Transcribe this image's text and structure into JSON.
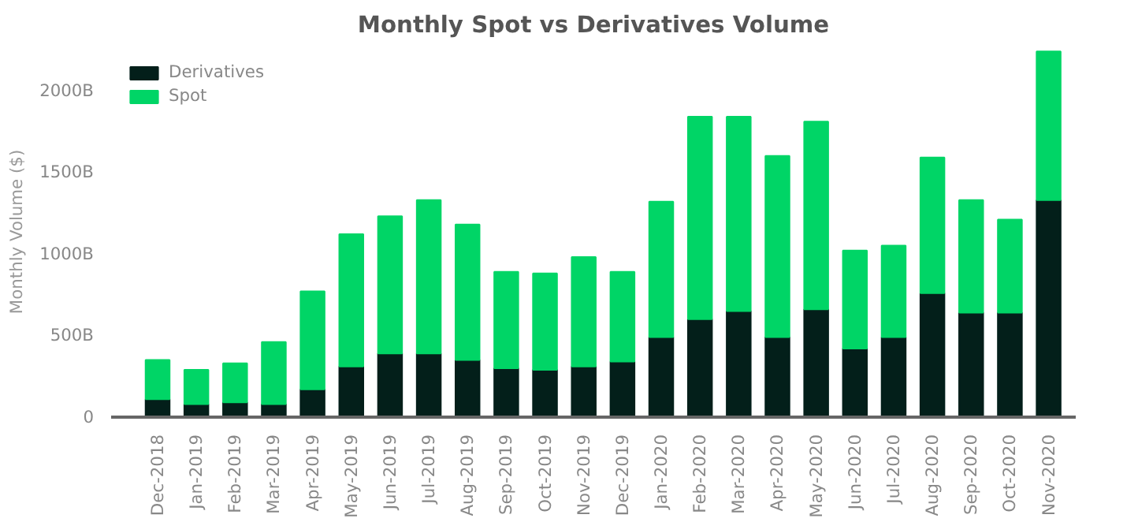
{
  "chart_data": {
    "type": "bar",
    "title": "Monthly Spot vs Derivatives Volume",
    "ylabel": "Monthly Volume ($)",
    "categories": [
      "Dec-2018",
      "Jan-2019",
      "Feb-2019",
      "Mar-2019",
      "Apr-2019",
      "May-2019",
      "Jun-2019",
      "Jul-2019",
      "Aug-2019",
      "Sep-2019",
      "Oct-2019",
      "Nov-2019",
      "Dec-2019",
      "Jan-2020",
      "Feb-2020",
      "Mar-2020",
      "Apr-2020",
      "May-2020",
      "Jun-2020",
      "Jul-2020",
      "Aug-2020",
      "Sep-2020",
      "Oct-2020",
      "Nov-2020"
    ],
    "stacked": true,
    "series": [
      {
        "name": "Derivatives",
        "color": "#031f1a",
        "values": [
          110,
          80,
          90,
          80,
          170,
          310,
          390,
          390,
          350,
          300,
          290,
          310,
          340,
          490,
          600,
          650,
          490,
          660,
          420,
          490,
          760,
          640,
          640,
          1330
        ]
      },
      {
        "name": "Spot",
        "color": "#00d566",
        "values": [
          240,
          210,
          240,
          380,
          600,
          810,
          840,
          940,
          830,
          590,
          590,
          670,
          550,
          830,
          1240,
          1190,
          1110,
          1150,
          600,
          560,
          830,
          690,
          570,
          910
        ]
      }
    ],
    "ylim": [
      0,
      2270
    ],
    "yticks": [
      {
        "value": 0,
        "label": "0"
      },
      {
        "value": 500,
        "label": "500B"
      },
      {
        "value": 1000,
        "label": "1000B"
      },
      {
        "value": 1500,
        "label": "1500B"
      },
      {
        "value": 2000,
        "label": "2000B"
      }
    ],
    "grid": false,
    "legend": "top left"
  }
}
